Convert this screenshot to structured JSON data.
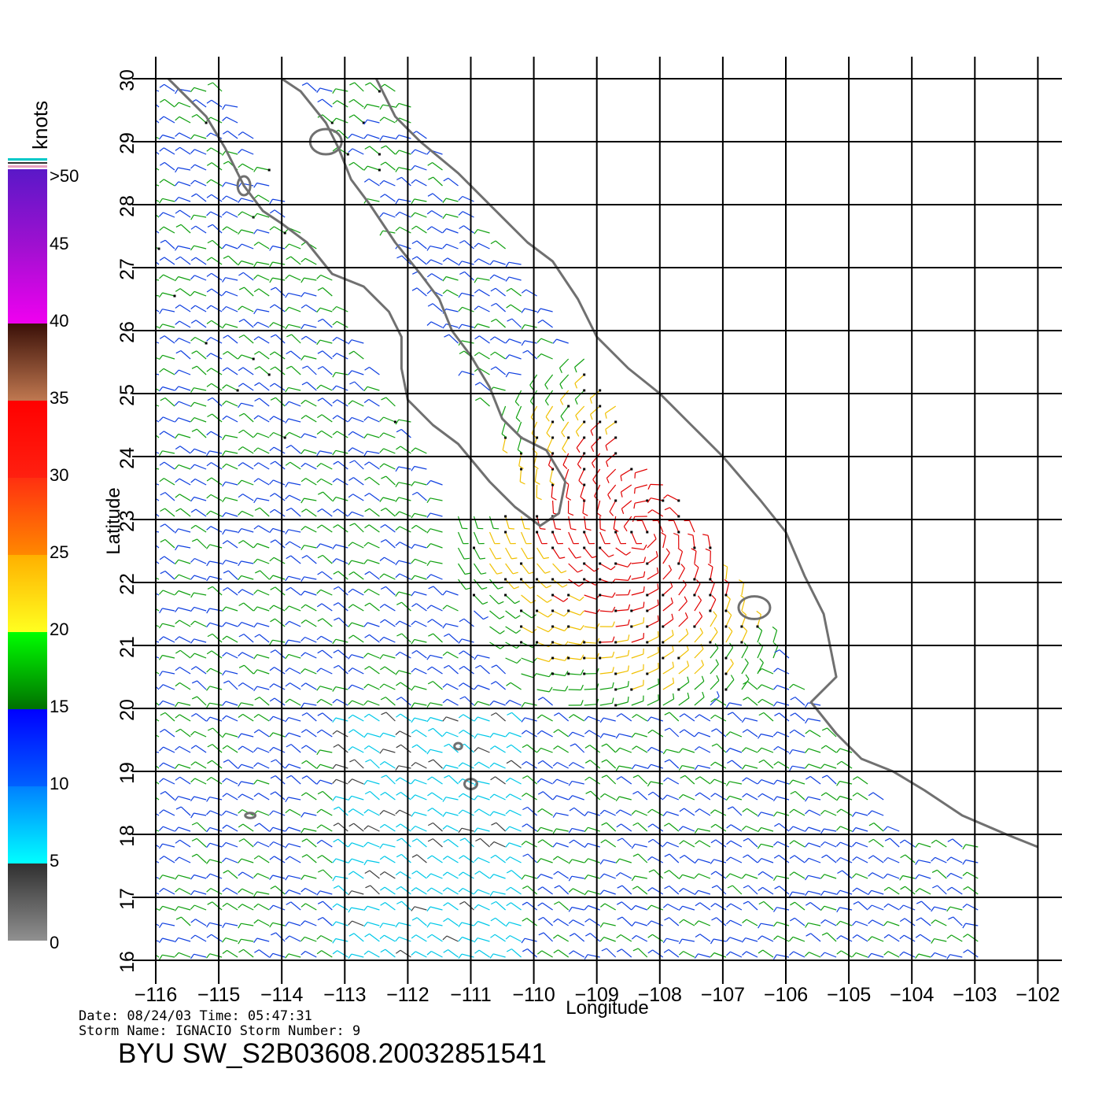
{
  "plot": {
    "x_axis_label": "Longitude",
    "y_axis_label": "Latitude",
    "lon_ticks": [
      "−116",
      "−115",
      "−114",
      "−113",
      "−112",
      "−111",
      "−110",
      "−109",
      "−108",
      "−107",
      "−106",
      "−105",
      "−104",
      "−103",
      "−102"
    ],
    "lat_ticks": [
      "16",
      "17",
      "18",
      "19",
      "20",
      "21",
      "22",
      "23",
      "24",
      "25",
      "26",
      "27",
      "28",
      "29",
      "30"
    ],
    "lon_range": [
      -116,
      -102
    ],
    "lat_range": [
      16,
      30
    ],
    "grid": true
  },
  "colorbar": {
    "title": "knots",
    "labels": [
      ">50",
      "45",
      "40",
      "35",
      "30",
      "25",
      "20",
      "15",
      "10",
      "5",
      "0"
    ],
    "segments": [
      {
        "from": 45,
        "to": 50,
        "colors": [
          "#5a18c8",
          "#a010d0"
        ]
      },
      {
        "from": 40,
        "to": 45,
        "colors": [
          "#a010d0",
          "#f000f0"
        ]
      },
      {
        "from": 35,
        "to": 40,
        "colors": [
          "#3a1008",
          "#c07850"
        ]
      },
      {
        "from": 30,
        "to": 35,
        "colors": [
          "#ff0000",
          "#ff2010"
        ]
      },
      {
        "from": 25,
        "to": 30,
        "colors": [
          "#ff3010",
          "#ff8800"
        ]
      },
      {
        "from": 20,
        "to": 25,
        "colors": [
          "#ffb000",
          "#ffff20"
        ]
      },
      {
        "from": 15,
        "to": 20,
        "colors": [
          "#00ff00",
          "#007000"
        ]
      },
      {
        "from": 10,
        "to": 15,
        "colors": [
          "#0000ff",
          "#0060ff"
        ]
      },
      {
        "from": 5,
        "to": 10,
        "colors": [
          "#0080ff",
          "#00ffff"
        ]
      },
      {
        "from": 0,
        "to": 5,
        "colors": [
          "#303030",
          "#909090"
        ]
      }
    ]
  },
  "info": {
    "line1": "Date: 08/24/03   Time: 05:47:31",
    "line2": "Storm  Name: IGNACIO   Storm  Number: 9",
    "product": "BYU  SW_S2B03608.20032851541"
  },
  "storm_center": {
    "lon": -108.3,
    "lat": 22.8
  },
  "colors": {
    "coast": "#707070",
    "grid": "#000000",
    "calm": "#404040",
    "speed_5_10": "#00c8e8",
    "speed_10_15": "#1040e0",
    "speed_15_20": "#10a010",
    "speed_20_25": "#f0c000",
    "speed_25_35": "#e00000",
    "speed_over_45": "#7000a0"
  }
}
